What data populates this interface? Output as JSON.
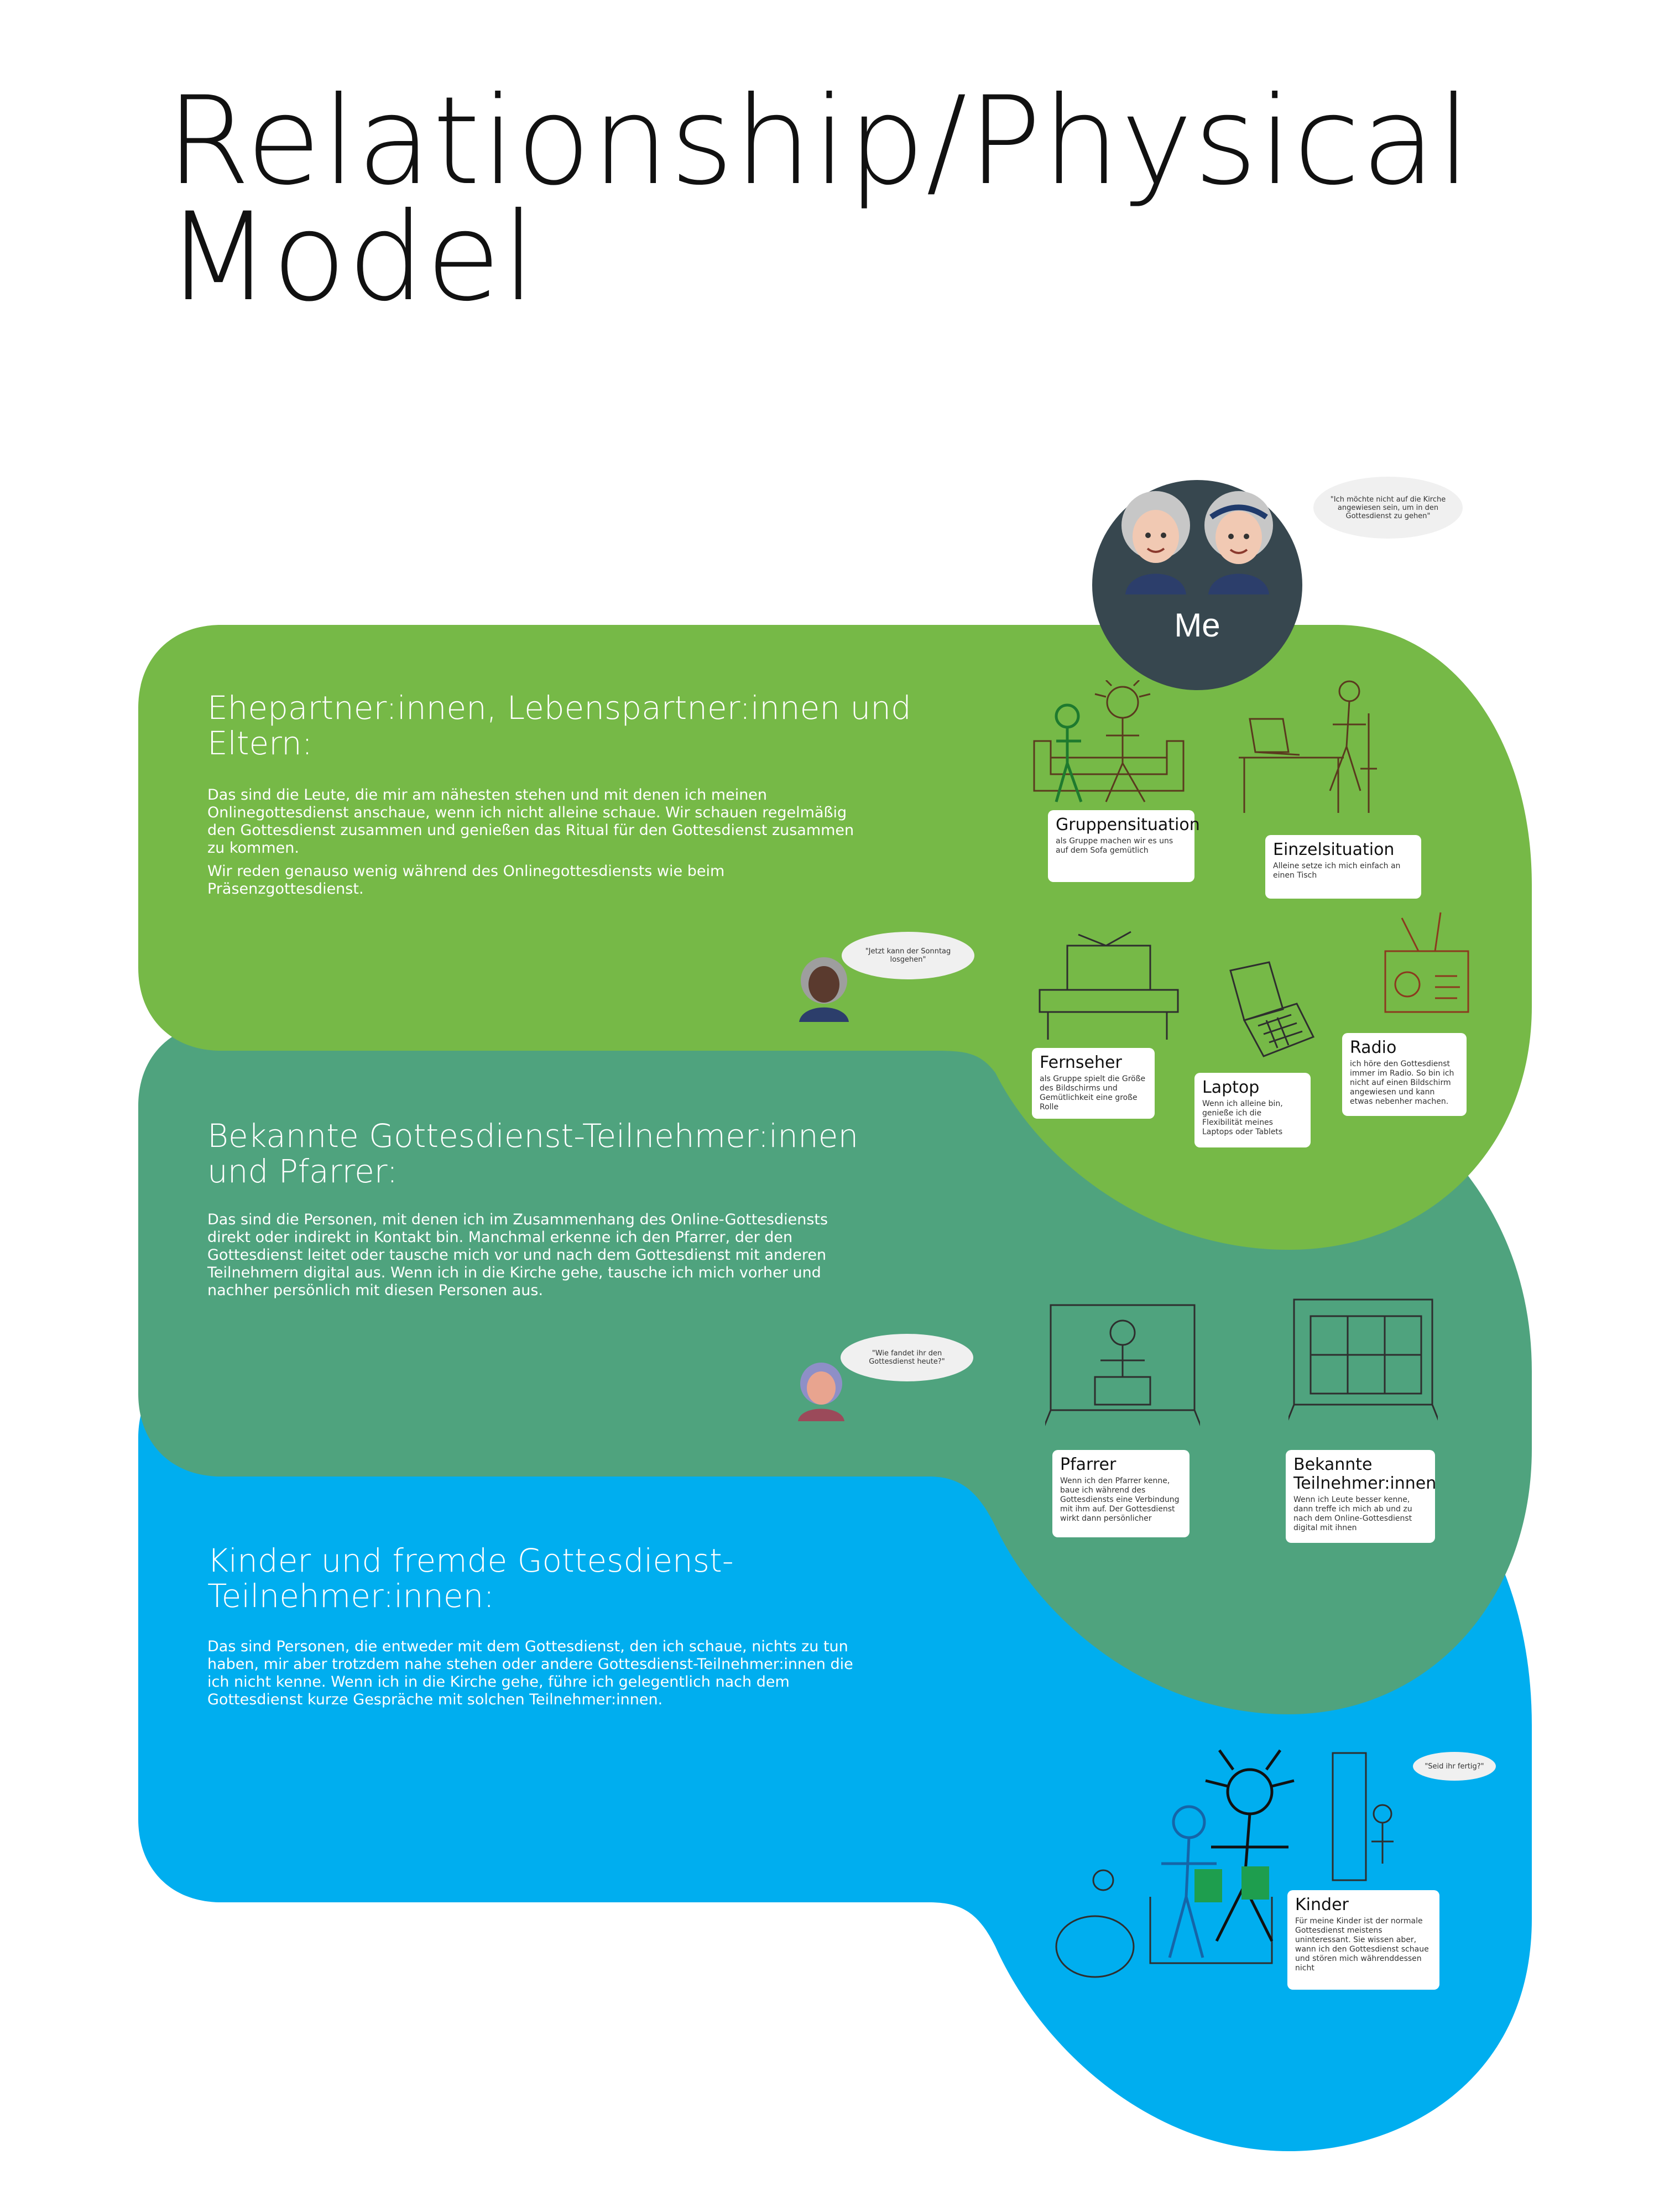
{
  "title": {
    "line1": "Relationship/Physical",
    "line2": "Model"
  },
  "colors": {
    "green": "#76b947",
    "teal": "#4fa37e",
    "blue": "#00aeef",
    "me_circle": "#37474f"
  },
  "me": {
    "label": "Me",
    "quote": "\"Ich möchte nicht auf die Kirche angewiesen sein, um in den Gottesdienst zu gehen\""
  },
  "sections": {
    "partners": {
      "title": "Ehepartner:innen, Lebenspartner:innen und Eltern:",
      "body1": "Das sind die Leute, die mir am nähesten stehen und mit denen ich meinen Onlinegottesdienst anschaue, wenn ich nicht alleine schaue. Wir schauen regelmäßig den Gottesdienst zusammen und genießen das Ritual für den Gottesdienst zusammen zu kommen.",
      "body2": "Wir reden genauso wenig während des Onlinegottesdiensts wie beim Präsenzgottesdienst.",
      "quote": "\"Jetzt kann der Sonntag losgehen\""
    },
    "known": {
      "title": "Bekannte Gottesdienst-Teilnehmer:innen und Pfarrer:",
      "body": "Das sind die Personen, mit denen ich im Zusammenhang des Online-Gottesdiensts direkt oder indirekt in Kontakt bin. Manchmal erkenne ich den Pfarrer, der den Gottesdienst leitet oder tausche mich vor und nach dem Gottesdienst mit anderen Teilnehmern digital aus. Wenn ich in die Kirche gehe, tausche ich mich vorher und nachher persönlich mit diesen Personen aus.",
      "quote": "\"Wie fandet ihr den Gottesdienst heute?\""
    },
    "children": {
      "title": "Kinder und fremde Gottesdienst-Teilnehmer:innen:",
      "body": "Das sind Personen, die entweder mit dem Gottesdienst, den ich schaue, nichts zu tun haben, mir aber trotzdem nahe stehen oder andere Gottesdienst-Teilnehmer:innen die ich nicht kenne. Wenn ich in die Kirche gehe, führe ich gelegentlich nach dem Gottesdienst kurze Gespräche mit solchen Teilnehmer:innen.",
      "quote": "\"Seid ihr fertig?\""
    }
  },
  "cards": {
    "gruppe": {
      "h": "Gruppensituation",
      "t": "als Gruppe machen wir es uns auf dem Sofa gemütlich"
    },
    "einzel": {
      "h": "Einzelsituation",
      "t": "Alleine setze ich mich einfach an einen Tisch"
    },
    "fernseher": {
      "h": "Fernseher",
      "t": "als Gruppe spielt die Größe des Bildschirms und Gemütlichkeit eine große Rolle"
    },
    "laptop": {
      "h": "Laptop",
      "t": "Wenn ich alleine bin, genieße ich die Flexibilität meines Laptops oder Tablets"
    },
    "radio": {
      "h": "Radio",
      "t": "ich höre den Gottesdienst immer im Radio. So bin ich nicht auf einen Bildschirm angewiesen und kann etwas nebenher machen."
    },
    "pfarrer": {
      "h": "Pfarrer",
      "t": "Wenn ich den Pfarrer kenne, baue ich während des Gottesdiensts eine Verbindung mit ihm auf. Der Gottesdienst wirkt dann persönlicher"
    },
    "bekannte": {
      "h": "Bekannte Teilnehmer:innen",
      "t": "Wenn ich Leute besser kenne, dann treffe ich mich ab und zu nach dem Online-Gottesdienst digital mit ihnen"
    },
    "kinder": {
      "h": "Kinder",
      "t": "Für meine Kinder ist der normale Gottesdienst meistens uninteressant. Sie wissen aber, wann ich den Gottesdienst schaue und stören mich währenddessen nicht"
    }
  },
  "icons": [
    "elderly-woman-avatar-icon",
    "elderly-woman-avatar-icon",
    "woman-avatar-icon",
    "woman-avatar-icon",
    "sofa-sketch-icon",
    "desk-sketch-icon",
    "tv-sketch-icon",
    "laptop-sketch-icon",
    "radio-sketch-icon",
    "pastor-screen-sketch-icon",
    "video-call-sketch-icon",
    "children-sketch-icon"
  ]
}
